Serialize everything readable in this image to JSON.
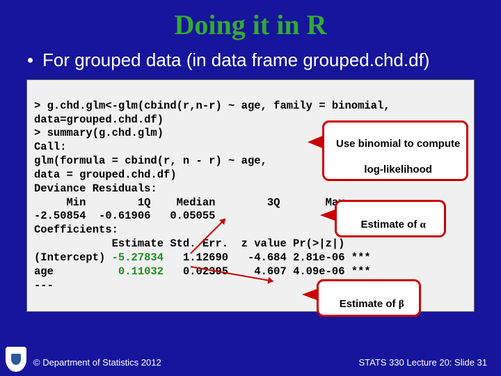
{
  "title": "Doing it in R",
  "bullet_text": "For grouped data (in data frame grouped.chd.df)",
  "code": {
    "l1": "> g.chd.glm<-glm(cbind(r,n-r) ~ age, family = binomial,",
    "l2": "data=grouped.chd.df)",
    "l3": "> summary(g.chd.glm)",
    "l4": "Call:",
    "l5": "glm(formula = cbind(r, n - r) ~ age,",
    "l6": "data = grouped.chd.df)",
    "l7": "Deviance Residuals:",
    "l8": "     Min        1Q    Median        3Q       Max",
    "l9": "-2.50854  -0.61906   0.05055",
    "l10": "Coefficients:",
    "l11": "            Estimate Std. Err.  z value Pr(>|z|)",
    "l12_a": "(Intercept) ",
    "l12_b": "-5.27834",
    "l12_c": "   1.12690   -4.684 2.81e-06 ***",
    "l13_a": "age          ",
    "l13_b": "0.11032",
    "l13_c": "   0.02395    4.607 4.09e-06 ***",
    "l14": "---"
  },
  "callouts": {
    "c1_line1": "Use binomial to compute",
    "c1_line2": "log-likelihood",
    "c2_pre": "Estimate of ",
    "c2_sym": "α",
    "c3_pre": "Estimate of ",
    "c3_sym": "β"
  },
  "footer": {
    "left": "© Department of Statistics 2012",
    "right": "STATS 330 Lecture 20: Slide 31"
  }
}
